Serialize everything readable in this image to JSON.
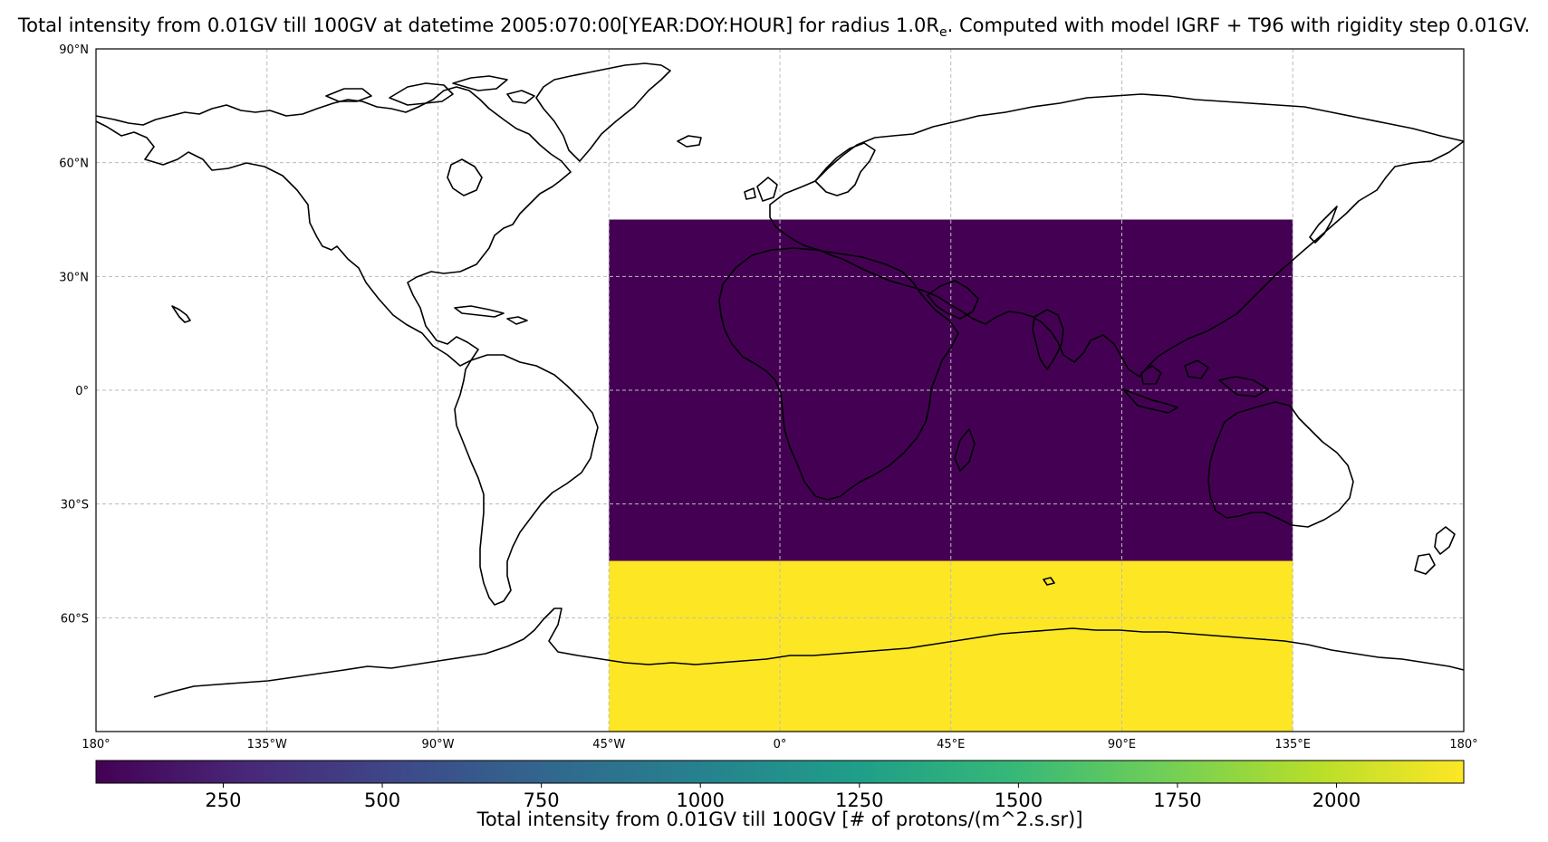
{
  "title_main": "Total intensity from 0.01GV till 100GV at datetime 2005:070:00[YEAR:DOY:HOUR] for radius 1.0R",
  "title_sub": "e",
  "title_tail": ". Computed with model IGRF + T96 with rigidity step 0.01GV.",
  "map": {
    "lon_range": [
      -180,
      180
    ],
    "lat_range": [
      -90,
      90
    ],
    "gridlines": true,
    "lat_ticks": [
      {
        "value": 90,
        "label": "90°N"
      },
      {
        "value": 60,
        "label": "60°N"
      },
      {
        "value": 30,
        "label": "30°N"
      },
      {
        "value": 0,
        "label": "0°"
      },
      {
        "value": -30,
        "label": "30°S"
      },
      {
        "value": -60,
        "label": "60°S"
      }
    ],
    "lon_ticks": [
      {
        "value": -180,
        "label": "180°"
      },
      {
        "value": -135,
        "label": "135°W"
      },
      {
        "value": -90,
        "label": "90°W"
      },
      {
        "value": -45,
        "label": "45°W"
      },
      {
        "value": 0,
        "label": "0°"
      },
      {
        "value": 45,
        "label": "45°E"
      },
      {
        "value": 90,
        "label": "90°E"
      },
      {
        "value": 135,
        "label": "135°E"
      },
      {
        "value": 180,
        "label": "180°"
      }
    ],
    "data_cells": [
      {
        "lon_min": -45,
        "lon_max": 135,
        "lat_min": -45,
        "lat_max": 45,
        "intensity": 50,
        "color": "#440154"
      },
      {
        "lon_min": -45,
        "lon_max": 135,
        "lat_min": -90,
        "lat_max": -45,
        "intensity": 2200,
        "color": "#fde725"
      }
    ]
  },
  "colorbar": {
    "label": "Total intensity from 0.01GV till 100GV [# of protons/(m^2.s.sr)]",
    "range": [
      50,
      2200
    ],
    "tick_labels": [
      "250",
      "500",
      "750",
      "1000",
      "1250",
      "1500",
      "1750",
      "2000"
    ],
    "tick_values": [
      250,
      500,
      750,
      1000,
      1250,
      1500,
      1750,
      2000
    ],
    "colors": [
      "#440154",
      "#482878",
      "#3e4989",
      "#31688e",
      "#26828e",
      "#1f9e89",
      "#35b779",
      "#6ece58",
      "#b5de2b",
      "#fde725"
    ]
  }
}
